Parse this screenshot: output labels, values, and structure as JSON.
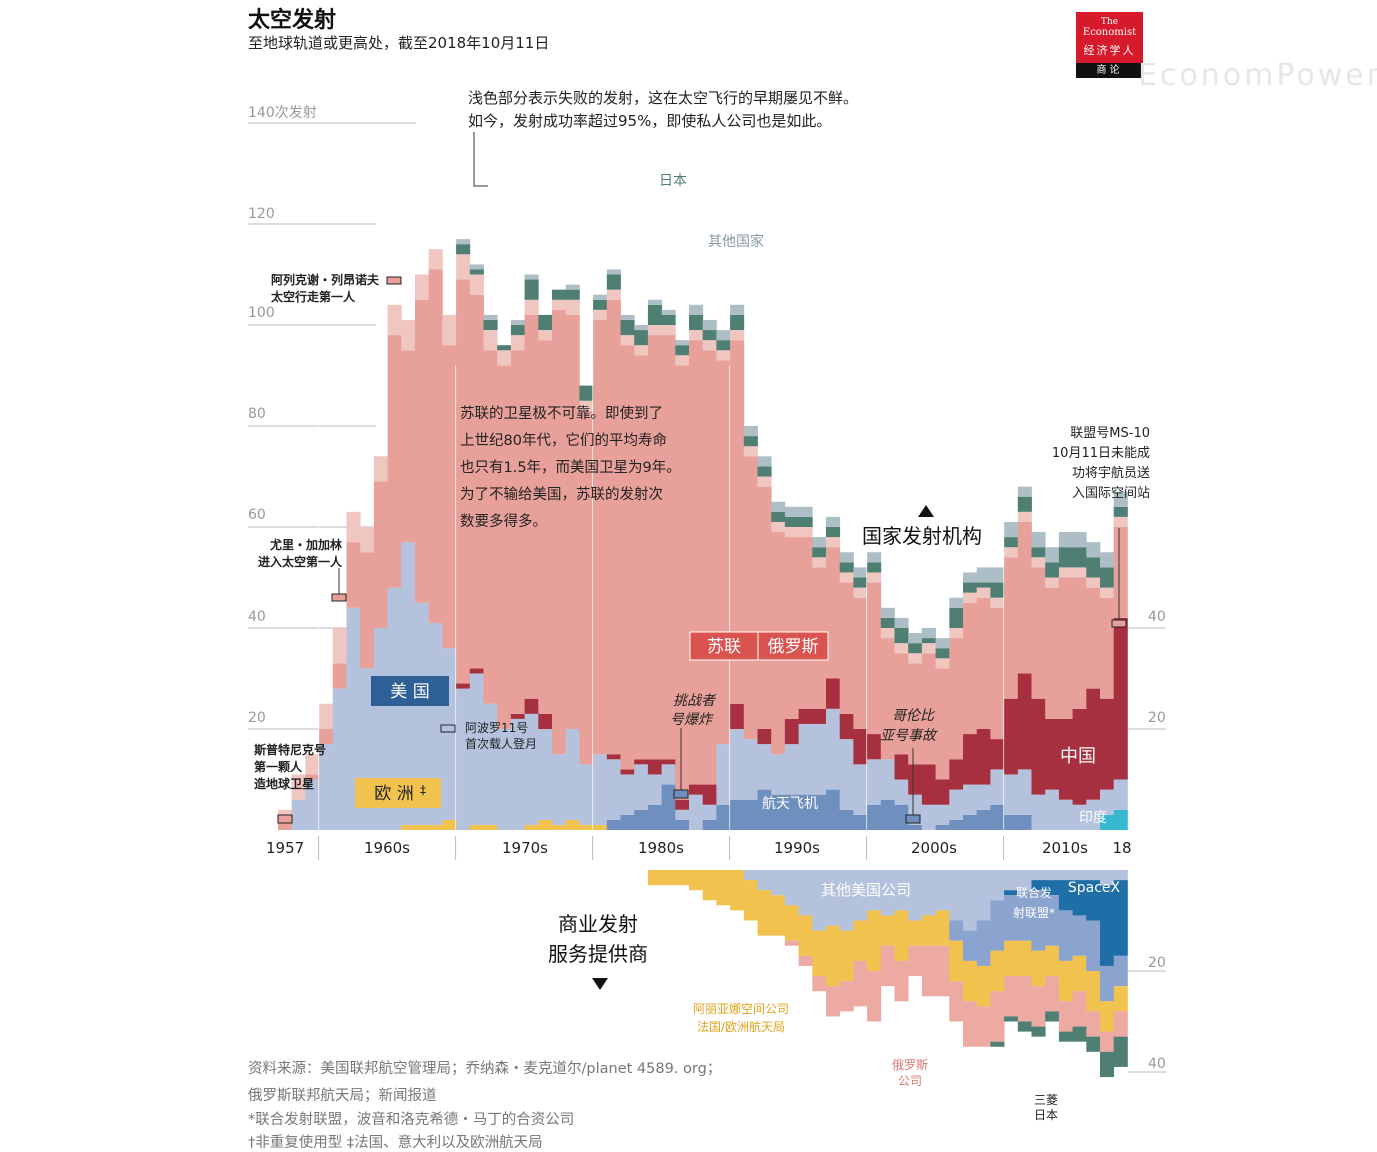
{
  "header": {
    "title": "太空发射",
    "subtitle": "至地球轨道或更高处，截至2018年10月11日",
    "logo": {
      "line1": "The",
      "line2": "Economist",
      "line3": "经济学人",
      "line4": "商论"
    },
    "watermark": "EconomPower"
  },
  "colors": {
    "ussr_russia": "#e8a09a",
    "ussr_russia_fail": "#f0c6c0",
    "usa": "#b4c2dd",
    "usa_fail": "#cdd7ea",
    "europe": "#f2c24e",
    "china": "#a6303f",
    "india": "#35b9cf",
    "shuttle": "#6f8fbf",
    "japan": "#4f7f73",
    "other": "#aebec6",
    "spacex": "#1f6ea8",
    "ula": "#8aa3cf",
    "other_us_companies": "#b4c2dd",
    "arianespace": "#f2c24e",
    "russian_companies": "#ecaaa3",
    "mitsubishi": "#4f7f73"
  },
  "chart_data": [
    {
      "type": "area",
      "title": "国家发射机构",
      "ylabel": "140次发射",
      "y_ticks": [
        "140次发射",
        "120",
        "100",
        "80",
        "60",
        "40",
        "20"
      ],
      "y_ticks_right": [
        "40",
        "20"
      ],
      "ylim": [
        0,
        140
      ],
      "x_ticks": [
        "1957",
        "1960s",
        "1970s",
        "1980s",
        "1990s",
        "2000s",
        "2010s",
        "18"
      ],
      "years": [
        1957,
        1958,
        1959,
        1960,
        1961,
        1962,
        1963,
        1964,
        1965,
        1966,
        1967,
        1968,
        1969,
        1970,
        1971,
        1972,
        1973,
        1974,
        1975,
        1976,
        1977,
        1978,
        1979,
        1980,
        1981,
        1982,
        1983,
        1984,
        1985,
        1986,
        1987,
        1988,
        1989,
        1990,
        1991,
        1992,
        1993,
        1994,
        1995,
        1996,
        1997,
        1998,
        1999,
        2000,
        2001,
        2002,
        2003,
        2004,
        2005,
        2006,
        2007,
        2008,
        2009,
        2010,
        2011,
        2012,
        2013,
        2014,
        2015,
        2016,
        2017,
        2018
      ],
      "series": [
        {
          "name": "欧洲",
          "color_key": "europe",
          "values": [
            0,
            0,
            0,
            0,
            0,
            0,
            0,
            0,
            0,
            1,
            1,
            1,
            2,
            0,
            1,
            1,
            0,
            0,
            1,
            2,
            1,
            2,
            1,
            1,
            0,
            0,
            0,
            0,
            0,
            0,
            0,
            0,
            0,
            0,
            0,
            0,
            0,
            0,
            0,
            0,
            0,
            0,
            0,
            0,
            0,
            0,
            0,
            0,
            0,
            0,
            0,
            0,
            0,
            0,
            0,
            0,
            0,
            0,
            0,
            0,
            0,
            0
          ]
        },
        {
          "name": "印度",
          "color_key": "india",
          "values": [
            0,
            0,
            0,
            0,
            0,
            0,
            0,
            0,
            0,
            0,
            0,
            0,
            0,
            0,
            0,
            0,
            0,
            0,
            0,
            0,
            0,
            0,
            0,
            0,
            0,
            0,
            0,
            0,
            0,
            0,
            0,
            0,
            0,
            0,
            0,
            0,
            0,
            0,
            0,
            0,
            0,
            0,
            0,
            0,
            0,
            0,
            0,
            0,
            0,
            0,
            0,
            0,
            0,
            0,
            0,
            0,
            0,
            0,
            0,
            0,
            3,
            4
          ]
        },
        {
          "name": "航天飞机",
          "color_key": "shuttle",
          "values": [
            0,
            0,
            0,
            0,
            0,
            0,
            0,
            0,
            0,
            0,
            0,
            0,
            0,
            0,
            0,
            0,
            0,
            0,
            0,
            0,
            0,
            0,
            0,
            0,
            2,
            3,
            4,
            5,
            9,
            2,
            0,
            2,
            5,
            6,
            6,
            8,
            7,
            7,
            7,
            7,
            8,
            4,
            3,
            5,
            6,
            5,
            1,
            0,
            1,
            2,
            3,
            4,
            5,
            3,
            3,
            0,
            0,
            0,
            0,
            0,
            0,
            0
          ]
        },
        {
          "name": "美国",
          "color_key": "usa",
          "values": [
            0,
            6,
            10,
            17,
            28,
            44,
            32,
            40,
            48,
            56,
            44,
            40,
            34,
            28,
            30,
            24,
            20,
            22,
            22,
            18,
            14,
            18,
            12,
            14,
            12,
            8,
            9,
            6,
            4,
            2,
            7,
            3,
            12,
            14,
            12,
            9,
            8,
            10,
            14,
            14,
            16,
            14,
            10,
            9,
            8,
            5,
            6,
            5,
            4,
            6,
            6,
            5,
            7,
            8,
            9,
            7,
            8,
            6,
            5,
            6,
            5,
            6
          ]
        },
        {
          "name": "中国",
          "color_key": "china",
          "values": [
            0,
            0,
            0,
            0,
            0,
            0,
            0,
            0,
            0,
            0,
            0,
            0,
            0,
            1,
            1,
            0,
            0,
            1,
            3,
            3,
            0,
            0,
            0,
            0,
            1,
            1,
            1,
            3,
            1,
            2,
            2,
            4,
            0,
            5,
            0,
            3,
            0,
            5,
            3,
            3,
            6,
            5,
            7,
            5,
            0,
            5,
            6,
            8,
            5,
            6,
            10,
            11,
            6,
            15,
            19,
            19,
            14,
            16,
            19,
            22,
            18,
            32
          ]
        },
        {
          "name": "苏联/俄罗斯",
          "color_key": "ussr_russia",
          "values": [
            2,
            0,
            1,
            3,
            5,
            13,
            23,
            29,
            50,
            38,
            60,
            70,
            60,
            80,
            74,
            70,
            72,
            72,
            76,
            74,
            88,
            82,
            70,
            86,
            90,
            84,
            80,
            84,
            84,
            86,
            88,
            86,
            76,
            72,
            56,
            48,
            44,
            36,
            34,
            28,
            26,
            26,
            26,
            30,
            24,
            20,
            20,
            22,
            22,
            24,
            26,
            26,
            26,
            28,
            30,
            26,
            26,
            28,
            26,
            20,
            20,
            18
          ]
        },
        {
          "name": "失败",
          "color_key": "ussr_russia_fail",
          "values": [
            2,
            5,
            4,
            5,
            7,
            6,
            5,
            5,
            6,
            6,
            5,
            4,
            6,
            5,
            4,
            4,
            3,
            3,
            3,
            2,
            2,
            3,
            2,
            2,
            2,
            2,
            2,
            2,
            2,
            2,
            2,
            2,
            2,
            2,
            2,
            2,
            2,
            2,
            2,
            2,
            2,
            2,
            2,
            2,
            2,
            2,
            2,
            2,
            2,
            2,
            2,
            2,
            2,
            2,
            2,
            2,
            2,
            2,
            2,
            2,
            2,
            2
          ]
        },
        {
          "name": "日本",
          "color_key": "japan",
          "values": [
            0,
            0,
            0,
            0,
            0,
            0,
            0,
            0,
            0,
            0,
            0,
            0,
            0,
            2,
            1,
            2,
            1,
            2,
            4,
            3,
            2,
            2,
            3,
            2,
            3,
            3,
            3,
            4,
            2,
            2,
            3,
            2,
            2,
            3,
            2,
            2,
            2,
            2,
            2,
            2,
            2,
            2,
            2,
            2,
            2,
            3,
            2,
            1,
            2,
            4,
            2,
            1,
            3,
            2,
            3,
            2,
            3,
            4,
            4,
            4,
            4,
            2
          ]
        },
        {
          "name": "其他国家",
          "color_key": "other",
          "values": [
            0,
            0,
            0,
            0,
            0,
            0,
            0,
            0,
            0,
            0,
            0,
            0,
            0,
            1,
            1,
            1,
            0,
            1,
            1,
            0,
            0,
            1,
            0,
            1,
            1,
            1,
            1,
            1,
            1,
            1,
            2,
            2,
            2,
            2,
            2,
            2,
            2,
            2,
            2,
            2,
            2,
            2,
            2,
            2,
            2,
            2,
            2,
            2,
            2,
            2,
            2,
            3,
            3,
            3,
            2,
            3,
            3,
            3,
            3,
            3,
            3,
            3
          ]
        }
      ],
      "labels": {
        "country_agencies": "国家发射机构",
        "ussr": "苏联",
        "russia": "俄罗斯",
        "usa": "美 国",
        "europe": "欧 洲",
        "europe_mark": "‡",
        "china": "中国",
        "india": "印度",
        "shuttle": "航天飞机",
        "japan": "日本",
        "other": "其他国家"
      },
      "annotations": {
        "failure_note_1": "浅色部分表示失败的发射，这在太空飞行的早期屡见不鲜。",
        "failure_note_2": "如今，发射成功率超过95%，即使私人公司也是如此。",
        "ussr_note": [
          "苏联的卫星极不可靠。即使到了",
          "上世纪80年代，它们的平均寿命",
          "也只有1.5年，而美国卫星为9年。",
          "为了不输给美国，苏联的发射次",
          "数要多得多。"
        ],
        "sputnik": [
          "斯普特尼克号",
          "第一颗人",
          "造地球卫星"
        ],
        "gagarin": [
          "尤里・加加林",
          "进入太空第一人"
        ],
        "leonov": [
          "阿列克谢・列昂诺夫",
          "太空行走第一人"
        ],
        "apollo": [
          "阿波罗11号",
          "首次载人登月"
        ],
        "challenger": [
          "挑战者",
          "号爆炸"
        ],
        "columbia": [
          "哥伦比",
          "亚号事故"
        ],
        "soyuz": [
          "联盟号MS-10",
          "10月11日未能成",
          "功将宇航员送",
          "入国际空间站"
        ]
      }
    },
    {
      "type": "area",
      "title": "商业发射服务提供商",
      "title_lines": [
        "商业发射",
        "服务提供商"
      ],
      "y_ticks": [
        "20",
        "40"
      ],
      "ylim": [
        0,
        50
      ],
      "years": [
        1984,
        1985,
        1986,
        1987,
        1988,
        1989,
        1990,
        1991,
        1992,
        1993,
        1994,
        1995,
        1996,
        1997,
        1998,
        1999,
        2000,
        2001,
        2002,
        2003,
        2004,
        2005,
        2006,
        2007,
        2008,
        2009,
        2010,
        2011,
        2012,
        2013,
        2014,
        2015,
        2016,
        2017,
        2018
      ],
      "series": [
        {
          "name": "其他美国公司",
          "color_key": "other_us_companies",
          "values": [
            0,
            0,
            0,
            0,
            0,
            0,
            0,
            2,
            4,
            5,
            7,
            9,
            12,
            11,
            12,
            10,
            8,
            9,
            8,
            10,
            9,
            8,
            10,
            12,
            10,
            6,
            4,
            4,
            2,
            2,
            2,
            2,
            2,
            3,
            2
          ]
        },
        {
          "name": "SpaceX",
          "color_key": "spacex",
          "values": [
            0,
            0,
            0,
            0,
            0,
            0,
            0,
            0,
            0,
            0,
            0,
            0,
            0,
            0,
            0,
            0,
            0,
            0,
            0,
            0,
            0,
            0,
            0,
            0,
            0,
            0,
            1,
            0,
            2,
            3,
            6,
            7,
            8,
            16,
            15
          ]
        },
        {
          "name": "联合发射联盟*",
          "color_key": "ula",
          "values": [
            0,
            0,
            0,
            0,
            0,
            0,
            0,
            0,
            0,
            0,
            0,
            0,
            0,
            0,
            0,
            0,
            0,
            0,
            0,
            0,
            0,
            0,
            4,
            6,
            9,
            10,
            9,
            10,
            12,
            10,
            10,
            8,
            10,
            7,
            6
          ]
        },
        {
          "name": "阿丽亚娜空间公司 法国/欧洲航天局",
          "color_key": "arianespace",
          "values": [
            3,
            3,
            3,
            4,
            6,
            7,
            8,
            8,
            9,
            8,
            7,
            8,
            9,
            12,
            10,
            8,
            12,
            6,
            10,
            5,
            6,
            7,
            8,
            8,
            8,
            8,
            7,
            7,
            7,
            6,
            8,
            7,
            8,
            6,
            5
          ]
        },
        {
          "name": "俄罗斯公司",
          "color_key": "russian_companies",
          "values": [
            0,
            0,
            0,
            0,
            0,
            0,
            0,
            0,
            0,
            0,
            1,
            2,
            3,
            6,
            6,
            9,
            10,
            8,
            8,
            6,
            10,
            10,
            8,
            9,
            8,
            10,
            8,
            9,
            8,
            7,
            6,
            7,
            5,
            4,
            5
          ]
        },
        {
          "name": "三菱 日本",
          "color_key": "mitsubishi",
          "values": [
            0,
            0,
            0,
            0,
            0,
            0,
            0,
            0,
            0,
            0,
            0,
            0,
            0,
            0,
            0,
            0,
            0,
            0,
            0,
            0,
            0,
            0,
            0,
            0,
            0,
            1,
            1,
            2,
            2,
            2,
            2,
            3,
            3,
            5,
            6
          ]
        }
      ],
      "labels": {
        "other_us": "其他美国公司",
        "spacex": "SpaceX",
        "ula": [
          "联合发",
          "射联盟*"
        ],
        "arianespace": [
          "阿丽亚娜空间公司",
          "法国/欧洲航天局"
        ],
        "russian": [
          "俄罗斯",
          "公司"
        ],
        "mitsubishi": [
          "三菱",
          "日本"
        ]
      }
    }
  ],
  "footer": {
    "sources_1": "资料来源：美国联邦航空管理局；乔纳森・麦克道尔/planet 4589. org；",
    "sources_2": "俄罗斯联邦航天局；新闻报道",
    "note_1": "*联合发射联盟，波音和洛克希德・马丁的合资公司",
    "note_2": "†非重复使用型 ‡法国、意大利以及欧洲航天局"
  }
}
